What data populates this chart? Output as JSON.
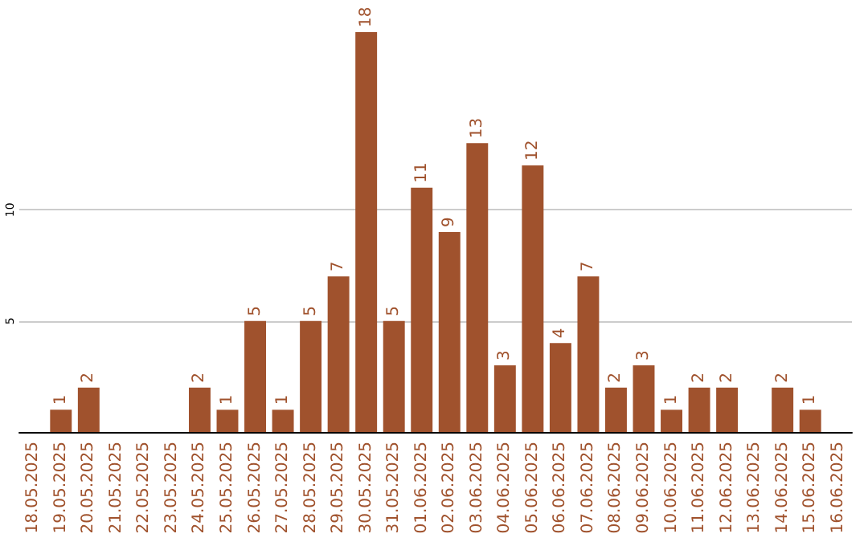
{
  "chart_data": {
    "type": "bar",
    "categories": [
      "18.05.2025",
      "19.05.2025",
      "20.05.2025",
      "21.05.2025",
      "22.05.2025",
      "23.05.2025",
      "24.05.2025",
      "25.05.2025",
      "26.05.2025",
      "27.05.2025",
      "28.05.2025",
      "29.05.2025",
      "30.05.2025",
      "31.05.2025",
      "01.06.2025",
      "02.06.2025",
      "03.06.2025",
      "04.06.2025",
      "05.06.2025",
      "06.06.2025",
      "07.06.2025",
      "08.06.2025",
      "09.06.2025",
      "10.06.2025",
      "11.06.2025",
      "12.06.2025",
      "13.06.2025",
      "14.06.2025",
      "15.06.2025",
      "16.06.2025"
    ],
    "values": [
      null,
      1,
      2,
      null,
      null,
      null,
      2,
      1,
      5,
      1,
      5,
      7,
      18,
      5,
      11,
      9,
      13,
      3,
      12,
      4,
      7,
      2,
      3,
      1,
      2,
      2,
      null,
      2,
      1,
      null
    ],
    "color": "#a0522d",
    "ylim": [
      0,
      18
    ],
    "yticks": [
      {
        "value": 0,
        "label": null
      },
      5,
      10
    ],
    "grid": "y",
    "data_labels": true
  }
}
